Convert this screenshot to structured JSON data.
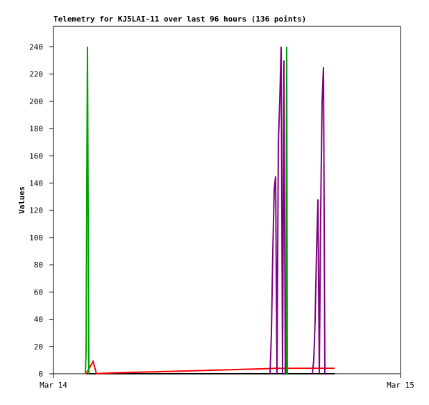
{
  "chart_data": {
    "type": "line",
    "title": "Telemetry for KJ5LAI-11 over last 96 hours (136 points)",
    "y_label": "Values",
    "xlim": [
      0,
      24
    ],
    "xticks": [
      {
        "value": 0,
        "label": "Mar 14"
      },
      {
        "value": 24,
        "label": "Mar 15"
      }
    ],
    "ylim": [
      0,
      255
    ],
    "yticks": [
      0,
      20,
      40,
      60,
      80,
      100,
      120,
      140,
      160,
      180,
      200,
      220,
      240
    ],
    "grid": false,
    "series": [
      {
        "color": "#000000",
        "x": [
          2.256,
          19.44
        ],
        "values": [
          0,
          0
        ]
      },
      {
        "color": "#ff0000",
        "x": [
          2.256,
          2.736,
          2.976,
          3.84,
          5.424,
          7.344,
          9.024,
          10.704,
          12.384,
          14.064,
          15.504,
          19.44
        ],
        "values": [
          0,
          9,
          0,
          0.5,
          1,
          1.5,
          2,
          2.5,
          3,
          3.5,
          4,
          4
        ]
      },
      {
        "color": "#00a000",
        "x": [
          2.208,
          2.256,
          2.304,
          2.352,
          2.4,
          2.448,
          9.0,
          16.08,
          16.128,
          16.176
        ],
        "values": [
          0,
          16,
          137,
          240,
          120,
          0,
          null,
          0,
          240,
          0
        ]
      },
      {
        "color": "#800080",
        "x": [
          14.976,
          15.072,
          15.168,
          15.264,
          15.36,
          15.456,
          15.552,
          15.648,
          15.744,
          15.84,
          15.936,
          16.032,
          17.0,
          17.904,
          18.0,
          18.096,
          18.192,
          18.288,
          18.384,
          18.48,
          18.576,
          18.672,
          18.768
        ],
        "values": [
          0,
          30,
          90,
          135,
          145,
          0,
          170,
          200,
          240,
          0,
          230,
          0,
          null,
          0,
          10,
          40,
          90,
          128,
          0,
          120,
          200,
          225,
          0
        ]
      }
    ]
  }
}
